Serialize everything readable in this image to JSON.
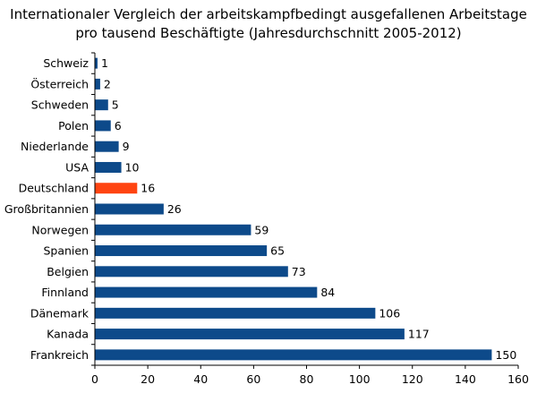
{
  "chart_data": {
    "type": "bar",
    "orientation": "horizontal",
    "title_line1": "Internationaler Vergleich der arbeitskampfbedingt ausgefallenen Arbeitstage",
    "title_line2": "pro tausend Beschäftigte (Jahresdurchschnitt 2005-2012)",
    "categories": [
      "Schweiz",
      "Österreich",
      "Schweden",
      "Polen",
      "Niederlande",
      "USA",
      "Deutschland",
      "Großbritannien",
      "Norwegen",
      "Spanien",
      "Belgien",
      "Finnland",
      "Dänemark",
      "Kanada",
      "Frankreich"
    ],
    "values": [
      1,
      2,
      5,
      6,
      9,
      10,
      16,
      26,
      59,
      65,
      73,
      84,
      106,
      117,
      150
    ],
    "highlight_category": "Deutschland",
    "xlim": [
      0,
      160
    ],
    "xticks": [
      0,
      20,
      40,
      60,
      80,
      100,
      120,
      140,
      160
    ],
    "grid": false,
    "colors": {
      "bar": "#0d4a8a",
      "highlight": "#ff4411",
      "axis": "#000000"
    }
  }
}
